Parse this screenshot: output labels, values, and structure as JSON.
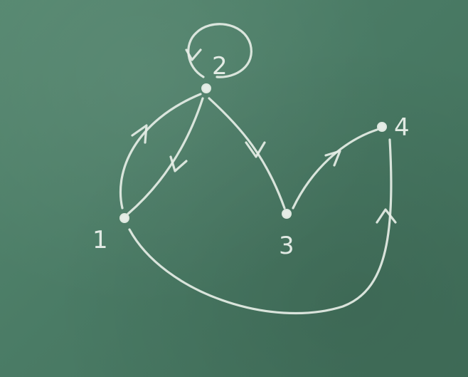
{
  "diagram": {
    "nodes": [
      {
        "id": "1",
        "label": "1"
      },
      {
        "id": "2",
        "label": "2"
      },
      {
        "id": "3",
        "label": "3"
      },
      {
        "id": "4",
        "label": "4"
      }
    ],
    "edges": [
      {
        "from": "2",
        "to": "2"
      },
      {
        "from": "2",
        "to": "1"
      },
      {
        "from": "1",
        "to": "2"
      },
      {
        "from": "2",
        "to": "3"
      },
      {
        "from": "3",
        "to": "4"
      },
      {
        "from": "1",
        "to": "4"
      }
    ]
  }
}
